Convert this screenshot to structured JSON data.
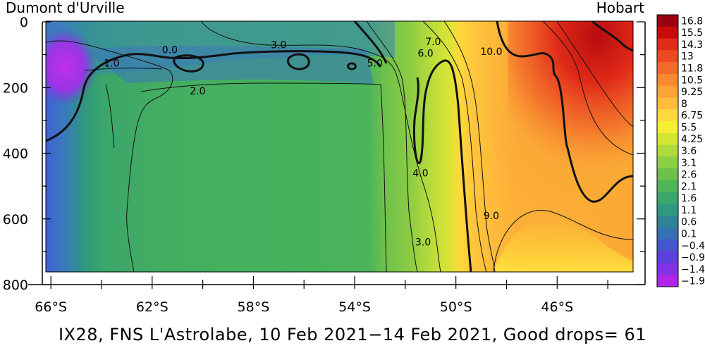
{
  "chart_data": {
    "type": "heatmap",
    "title": "",
    "left_label": "Dumont d'Urville",
    "right_label": "Hobart",
    "caption": "IX28, FNS L'Astrolabe, 10 Feb 2021−14 Feb 2021, Good drops= 61",
    "x_axis": {
      "ticks": [
        "66°S",
        "62°S",
        "58°S",
        "54°S",
        "50°S",
        "46°S"
      ],
      "tick_values": [
        -66,
        -62,
        -58,
        -54,
        -50,
        -46
      ],
      "range": [
        -66.2,
        -43.0
      ]
    },
    "y_axis": {
      "ticks": [
        "0",
        "200",
        "400",
        "600",
        "800"
      ],
      "tick_values": [
        0,
        200,
        400,
        600,
        800
      ],
      "range": [
        0,
        800
      ],
      "inverted": true
    },
    "colorbar": {
      "labels": [
        "16.8",
        "15.5",
        "14.3",
        "13",
        "11.8",
        "10.5",
        "9.25",
        "8",
        "6.75",
        "5.5",
        "4.25",
        "3.6",
        "3.1",
        "2.6",
        "2.1",
        "1.6",
        "1.1",
        "0.6",
        "0.1",
        "−0.4",
        "−0.9",
        "−1.4",
        "−1.9"
      ],
      "colors": [
        "#9a0010",
        "#c80a0a",
        "#e22a1a",
        "#ee4a22",
        "#f26a2a",
        "#f78a30",
        "#fba238",
        "#ffbd3c",
        "#ffd83c",
        "#f6ee32",
        "#d2e632",
        "#aeda3c",
        "#8cce44",
        "#6cc04c",
        "#50b45a",
        "#3aa66a",
        "#2e9880",
        "#2e8496",
        "#3570b2",
        "#4456cc",
        "#5c40dc",
        "#8232e6",
        "#b026e8"
      ]
    },
    "contour_labels": [
      {
        "text": "0.0",
        "lat": -61.3,
        "depth": 85
      },
      {
        "text": "1.0",
        "lat": -63.6,
        "depth": 125
      },
      {
        "text": "3.0",
        "lat": -57.0,
        "depth": 70
      },
      {
        "text": "2.0",
        "lat": -60.2,
        "depth": 210
      },
      {
        "text": "5.0",
        "lat": -53.2,
        "depth": 125
      },
      {
        "text": "6.0",
        "lat": -51.2,
        "depth": 95
      },
      {
        "text": "7.0",
        "lat": -50.9,
        "depth": 60
      },
      {
        "text": "10.0",
        "lat": -48.6,
        "depth": 90
      },
      {
        "text": "4.0",
        "lat": -51.4,
        "depth": 460
      },
      {
        "text": "9.0",
        "lat": -48.6,
        "depth": 590
      },
      {
        "text": "3.0",
        "lat": -51.3,
        "depth": 670
      }
    ],
    "legend": "colorbar right",
    "grid": false
  }
}
